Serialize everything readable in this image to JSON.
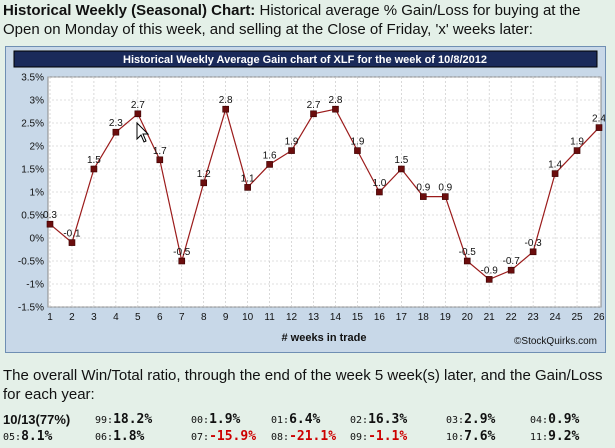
{
  "header": {
    "title": "Historical Weekly (Seasonal) Chart:",
    "description": "Historical average % Gain/Loss for buying at the Open on Monday of this week, and selling at the Close of Friday, 'x' weeks later:"
  },
  "chart_data": {
    "type": "line",
    "title": "Historical Weekly Average Gain chart of XLF for the week of 10/8/2012",
    "xlabel": "# weeks in trade",
    "ylabel": "",
    "x": [
      1,
      2,
      3,
      4,
      5,
      6,
      7,
      8,
      9,
      10,
      11,
      12,
      13,
      14,
      15,
      16,
      17,
      18,
      19,
      20,
      21,
      22,
      23,
      24,
      25,
      26
    ],
    "values": [
      0.3,
      -0.1,
      1.5,
      2.3,
      2.7,
      1.7,
      -0.5,
      1.2,
      2.8,
      1.1,
      1.6,
      1.9,
      2.7,
      2.8,
      1.9,
      1.0,
      1.5,
      0.9,
      0.9,
      -0.5,
      -0.9,
      -0.7,
      -0.3,
      1.4,
      1.9,
      2.4
    ],
    "point_labels": [
      "0.3",
      "-0.1",
      "1.5",
      "2.3",
      "2.7",
      "1.7",
      "-0.5",
      "1.2",
      "2.8",
      "1.1",
      "1.6",
      "1.9",
      "2.7",
      "2.8",
      "1.9",
      "1.0",
      "1.5",
      "0.9",
      "0.9",
      "-0.5",
      "-0.9",
      "-0.7",
      "-0.3",
      "1.4",
      "1.9",
      "2.4"
    ],
    "ylim": [
      -1.5,
      3.5
    ],
    "y_ticks": [
      "3.5%",
      "3%",
      "2.5%",
      "2%",
      "1.5%",
      "1%",
      "0.5%",
      "0%",
      "-0.5%",
      "-1%",
      "-1.5%"
    ],
    "x_ticks": [
      "1",
      "2",
      "3",
      "4",
      "5",
      "6",
      "7",
      "8",
      "9",
      "10",
      "11",
      "12",
      "13",
      "14",
      "15",
      "16",
      "17",
      "18",
      "19",
      "20",
      "21",
      "22",
      "23",
      "24",
      "25",
      "26"
    ],
    "grid": true,
    "colors": {
      "line": "#9b1b1b",
      "marker": "#6b0d0d",
      "plot_bg": "#ffffff",
      "frame_bg": "#c8d8e8",
      "title_bg": "#1a2a5a",
      "grid": "#c0c0c0"
    },
    "copyright": "©StockQuirks.com"
  },
  "summary": {
    "text": "The overall Win/Total ratio, through the end of the week 5 week(s) later, and the Gain/Loss for each year:"
  },
  "years": {
    "row1": [
      {
        "label": "",
        "value": "10/13(77%)",
        "neg": false
      },
      {
        "label": "99:",
        "value": "18.2%",
        "neg": false
      },
      {
        "label": "00:",
        "value": "1.9%",
        "neg": false
      },
      {
        "label": "01:",
        "value": "6.4%",
        "neg": false
      },
      {
        "label": "02:",
        "value": "16.3%",
        "neg": false
      },
      {
        "label": "03:",
        "value": "2.9%",
        "neg": false
      },
      {
        "label": "04:",
        "value": "0.9%",
        "neg": false
      }
    ],
    "row2": [
      {
        "label": "05:",
        "value": "8.1%",
        "neg": false
      },
      {
        "label": "06:",
        "value": "1.8%",
        "neg": false
      },
      {
        "label": "07:",
        "value": "-15.9%",
        "neg": true
      },
      {
        "label": "08:",
        "value": "-21.1%",
        "neg": true
      },
      {
        "label": "09:",
        "value": "-1.1%",
        "neg": true
      },
      {
        "label": "10:",
        "value": "7.6%",
        "neg": false
      },
      {
        "label": "11:",
        "value": "9.2%",
        "neg": false
      }
    ]
  }
}
